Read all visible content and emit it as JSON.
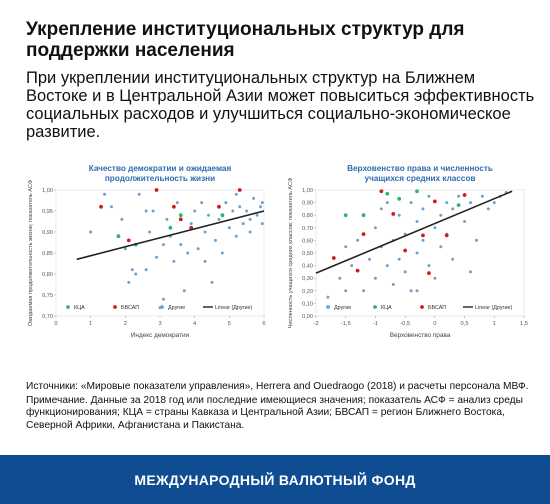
{
  "header": {
    "title": "Укрепление институциональных структур для поддержки населения",
    "subtitle": "При укреплении институциональных структур на Ближнем Востоке и в Центральной Азии может повыситься эффективность социальных расходов и улучшиться социально-экономическое развитие."
  },
  "notes": {
    "sources": "Источники: «Мировые показатели управления», Herrera and Ouedraogo (2018) и расчеты персонала МВФ.",
    "note": "Примечание. Данные за 2018 год или последние имеющиеся значения; показатель АСФ = анализ среды функционирования; КЦА = страны Кавказа и Центральной Азии; БВСАП = регион Ближнего Востока, Северной Африки, Афганистана и Пакистана."
  },
  "footer": {
    "label": "МЕЖДУНАРОДНЫЙ ВАЛЮТНЫЙ ФОНД"
  },
  "colors": {
    "kca": "#2bb673",
    "bvsap": "#d7191c",
    "other": "#6fa1cf",
    "trend": "#222222",
    "title": "#2f6cb0",
    "footer": "#0f4c91"
  },
  "chart_data": [
    {
      "type": "scatter",
      "title": "Качество демократии и ожидаемая продолжительность жизни",
      "xlabel": "Индекс демократии",
      "ylabel": "Ожидаемая продолжительность жизни; показатель АСФ",
      "xlim": [
        0,
        6
      ],
      "ylim": [
        0.7,
        1.0
      ],
      "xticks": [
        "0",
        "1",
        "2",
        "3",
        "4",
        "5",
        "6"
      ],
      "yticks": [
        "0,70",
        "0,75",
        "0,80",
        "0,85",
        "0,90",
        "0,95",
        "1,00"
      ],
      "legend": [
        "КЦА",
        "БВСАП",
        "Другие",
        "Linear (Другие)"
      ],
      "legend_placement": "bottom",
      "grid": "none",
      "trend": {
        "name": "Linear (Другие)",
        "x": [
          0.6,
          6.0
        ],
        "y": [
          0.835,
          0.95
        ]
      },
      "series": [
        {
          "name": "КЦА",
          "points": [
            [
              1.8,
              0.89
            ],
            [
              2.3,
              0.87
            ],
            [
              3.6,
              0.94
            ],
            [
              3.3,
              0.91
            ],
            [
              4.8,
              0.94
            ]
          ]
        },
        {
          "name": "БВСАП",
          "points": [
            [
              1.3,
              0.96
            ],
            [
              2.1,
              0.88
            ],
            [
              2.9,
              1.0
            ],
            [
              3.4,
              0.96
            ],
            [
              3.6,
              0.93
            ],
            [
              3.9,
              0.91
            ],
            [
              4.7,
              0.96
            ],
            [
              5.3,
              1.0
            ]
          ]
        },
        {
          "name": "Другие",
          "points": [
            [
              1.4,
              0.99
            ],
            [
              1.6,
              0.96
            ],
            [
              1.9,
              0.93
            ],
            [
              2.0,
              0.86
            ],
            [
              2.1,
              0.78
            ],
            [
              2.2,
              0.81
            ],
            [
              2.3,
              0.8
            ],
            [
              2.4,
              0.99
            ],
            [
              2.6,
              0.95
            ],
            [
              2.7,
              0.9
            ],
            [
              2.8,
              0.95
            ],
            [
              2.9,
              0.84
            ],
            [
              3.0,
              0.72
            ],
            [
              3.1,
              0.87
            ],
            [
              3.2,
              0.93
            ],
            [
              3.3,
              0.89
            ],
            [
              3.4,
              0.83
            ],
            [
              3.5,
              0.97
            ],
            [
              3.6,
              0.87
            ],
            [
              3.7,
              0.76
            ],
            [
              3.8,
              0.85
            ],
            [
              3.9,
              0.92
            ],
            [
              4.0,
              0.95
            ],
            [
              4.1,
              0.86
            ],
            [
              4.2,
              0.97
            ],
            [
              4.3,
              0.9
            ],
            [
              4.4,
              0.94
            ],
            [
              4.5,
              0.78
            ],
            [
              4.6,
              0.88
            ],
            [
              4.7,
              0.93
            ],
            [
              4.8,
              0.85
            ],
            [
              4.9,
              0.97
            ],
            [
              5.0,
              0.91
            ],
            [
              5.1,
              0.95
            ],
            [
              5.2,
              0.89
            ],
            [
              5.3,
              0.96
            ],
            [
              5.4,
              0.92
            ],
            [
              5.5,
              0.95
            ],
            [
              5.6,
              0.93
            ],
            [
              5.7,
              0.98
            ],
            [
              5.8,
              0.94
            ],
            [
              5.9,
              0.96
            ],
            [
              5.95,
              0.92
            ],
            [
              5.95,
              0.97
            ],
            [
              5.6,
              0.9
            ],
            [
              2.6,
              0.81
            ],
            [
              3.1,
              0.74
            ],
            [
              4.3,
              0.83
            ],
            [
              1.0,
              0.9
            ],
            [
              5.2,
              0.99
            ]
          ]
        }
      ]
    },
    {
      "type": "scatter",
      "title": "Верховенство права и численность учащихся средних классов",
      "xlabel": "Верховенство права",
      "ylabel": "Численность учащихся средних классов; показатель АСФ",
      "xlim": [
        -2,
        1.5
      ],
      "ylim": [
        0.0,
        1.0
      ],
      "xticks": [
        "-2",
        "-1,5",
        "-1",
        "-0,5",
        "0",
        "0,5",
        "1",
        "1,5"
      ],
      "yticks": [
        "0,00",
        "0,10",
        "0,20",
        "0,30",
        "0,40",
        "0,50",
        "0,60",
        "0,70",
        "0,80",
        "0,90",
        "1,00"
      ],
      "legend": [
        "Другие",
        "КЦА",
        "БВСАП",
        "Linear (Другие)"
      ],
      "legend_placement": "bottom",
      "grid": "none",
      "trend": {
        "name": "Linear (Другие)",
        "x": [
          -2.0,
          1.3
        ],
        "y": [
          0.34,
          0.99
        ]
      },
      "series": [
        {
          "name": "Другие",
          "points": [
            [
              -1.8,
              0.15
            ],
            [
              -1.6,
              0.3
            ],
            [
              -1.5,
              0.55
            ],
            [
              -1.4,
              0.4
            ],
            [
              -1.3,
              0.6
            ],
            [
              -1.2,
              0.2
            ],
            [
              -1.1,
              0.45
            ],
            [
              -1.0,
              0.7
            ],
            [
              -1.0,
              0.3
            ],
            [
              -0.9,
              0.55
            ],
            [
              -0.9,
              0.85
            ],
            [
              -0.8,
              0.4
            ],
            [
              -0.7,
              0.6
            ],
            [
              -0.7,
              0.25
            ],
            [
              -0.6,
              0.8
            ],
            [
              -0.6,
              0.45
            ],
            [
              -0.5,
              0.35
            ],
            [
              -0.5,
              0.65
            ],
            [
              -0.4,
              0.9
            ],
            [
              -0.4,
              0.2
            ],
            [
              -0.3,
              0.5
            ],
            [
              -0.3,
              0.75
            ],
            [
              -0.2,
              0.6
            ],
            [
              -0.2,
              0.85
            ],
            [
              -0.1,
              0.4
            ],
            [
              -0.1,
              0.95
            ],
            [
              0.0,
              0.7
            ],
            [
              0.0,
              0.3
            ],
            [
              0.1,
              0.8
            ],
            [
              0.1,
              0.55
            ],
            [
              0.2,
              0.9
            ],
            [
              0.2,
              0.65
            ],
            [
              0.3,
              0.85
            ],
            [
              0.3,
              0.45
            ],
            [
              0.4,
              0.95
            ],
            [
              0.5,
              0.75
            ],
            [
              0.6,
              0.9
            ],
            [
              0.7,
              0.6
            ],
            [
              0.8,
              0.95
            ],
            [
              0.9,
              0.85
            ],
            [
              1.0,
              0.9
            ],
            [
              1.1,
              0.95
            ],
            [
              1.2,
              0.98
            ],
            [
              -1.2,
              0.8
            ],
            [
              -0.8,
              0.9
            ],
            [
              -0.3,
              0.2
            ],
            [
              0.6,
              0.35
            ],
            [
              -1.5,
              0.2
            ]
          ]
        },
        {
          "name": "КЦА",
          "points": [
            [
              -1.5,
              0.8
            ],
            [
              -1.2,
              0.8
            ],
            [
              -0.6,
              0.93
            ],
            [
              -0.3,
              0.99
            ],
            [
              0.4,
              0.88
            ],
            [
              -0.8,
              0.97
            ]
          ]
        },
        {
          "name": "БВСАП",
          "points": [
            [
              -1.7,
              0.46
            ],
            [
              -1.3,
              0.36
            ],
            [
              -0.9,
              0.99
            ],
            [
              -0.7,
              0.81
            ],
            [
              -0.5,
              0.52
            ],
            [
              -0.2,
              0.64
            ],
            [
              0.0,
              0.91
            ],
            [
              0.2,
              0.64
            ],
            [
              0.5,
              0.96
            ],
            [
              -1.2,
              0.65
            ],
            [
              -0.1,
              0.34
            ]
          ]
        }
      ]
    }
  ]
}
